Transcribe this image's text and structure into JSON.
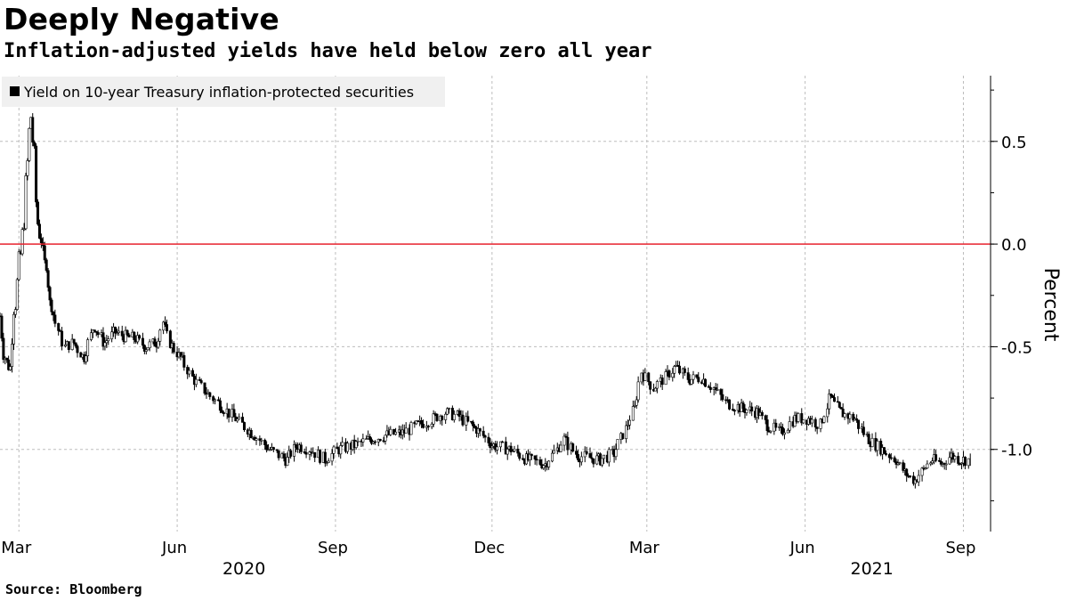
{
  "chart_data": {
    "type": "line",
    "title": "Deeply Negative",
    "subtitle": "Inflation-adjusted yields have held below zero all year",
    "legend": [
      "Yield on 10-year Treasury inflation-protected securities"
    ],
    "legend_position": "top-left",
    "ylabel": "Percent",
    "xlabel": "",
    "ylim": [
      -1.4,
      0.82
    ],
    "yticks": [
      0.5,
      0.0,
      -0.5,
      -1.0
    ],
    "ytick_labels": [
      "0.5",
      "0.0",
      "-0.5",
      "-1.0"
    ],
    "reference_line": {
      "value": 0.0,
      "color": "#e8222e"
    },
    "x_domain": [
      "2020-02-19",
      "2021-09-08"
    ],
    "month_ticks": [
      {
        "label": "Mar",
        "date": "2020-03-01"
      },
      {
        "label": "Jun",
        "date": "2020-06-01"
      },
      {
        "label": "Sep",
        "date": "2020-09-01"
      },
      {
        "label": "Dec",
        "date": "2020-12-01"
      },
      {
        "label": "Mar",
        "date": "2021-03-01"
      },
      {
        "label": "Jun",
        "date": "2021-06-01"
      },
      {
        "label": "Sep",
        "date": "2021-09-01"
      }
    ],
    "year_labels": [
      {
        "label": "2020",
        "date": "2020-07-15"
      },
      {
        "label": "2021",
        "date": "2021-07-15"
      }
    ],
    "grid": true,
    "series": [
      {
        "name": "Yield on 10-year Treasury inflation-protected securities",
        "style": "candlestick",
        "points": [
          [
            "2020-02-19",
            -0.35
          ],
          [
            "2020-02-22",
            -0.55
          ],
          [
            "2020-02-25",
            -0.6
          ],
          [
            "2020-02-28",
            -0.3
          ],
          [
            "2020-03-02",
            -0.05
          ],
          [
            "2020-03-04",
            0.1
          ],
          [
            "2020-03-06",
            0.4
          ],
          [
            "2020-03-08",
            0.62
          ],
          [
            "2020-03-10",
            0.45
          ],
          [
            "2020-03-12",
            0.1
          ],
          [
            "2020-03-14",
            0.02
          ],
          [
            "2020-03-17",
            -0.1
          ],
          [
            "2020-03-20",
            -0.3
          ],
          [
            "2020-03-24",
            -0.42
          ],
          [
            "2020-03-28",
            -0.5
          ],
          [
            "2020-04-02",
            -0.48
          ],
          [
            "2020-04-08",
            -0.55
          ],
          [
            "2020-04-14",
            -0.4
          ],
          [
            "2020-04-20",
            -0.48
          ],
          [
            "2020-04-26",
            -0.43
          ],
          [
            "2020-05-02",
            -0.45
          ],
          [
            "2020-05-08",
            -0.46
          ],
          [
            "2020-05-14",
            -0.5
          ],
          [
            "2020-05-20",
            -0.48
          ],
          [
            "2020-05-24",
            -0.38
          ],
          [
            "2020-05-28",
            -0.48
          ],
          [
            "2020-06-03",
            -0.55
          ],
          [
            "2020-06-10",
            -0.65
          ],
          [
            "2020-06-18",
            -0.72
          ],
          [
            "2020-06-26",
            -0.78
          ],
          [
            "2020-07-05",
            -0.85
          ],
          [
            "2020-07-15",
            -0.92
          ],
          [
            "2020-07-25",
            -1.0
          ],
          [
            "2020-08-04",
            -1.05
          ],
          [
            "2020-08-10",
            -0.98
          ],
          [
            "2020-08-18",
            -1.0
          ],
          [
            "2020-08-26",
            -1.05
          ],
          [
            "2020-09-03",
            -1.0
          ],
          [
            "2020-09-12",
            -0.98
          ],
          [
            "2020-09-22",
            -0.95
          ],
          [
            "2020-10-01",
            -0.93
          ],
          [
            "2020-10-10",
            -0.92
          ],
          [
            "2020-10-20",
            -0.88
          ],
          [
            "2020-10-28",
            -0.85
          ],
          [
            "2020-11-04",
            -0.82
          ],
          [
            "2020-11-12",
            -0.84
          ],
          [
            "2020-11-22",
            -0.9
          ],
          [
            "2020-12-02",
            -0.98
          ],
          [
            "2020-12-12",
            -1.0
          ],
          [
            "2020-12-22",
            -1.05
          ],
          [
            "2021-01-01",
            -1.07
          ],
          [
            "2021-01-08",
            -1.0
          ],
          [
            "2021-01-12",
            -0.95
          ],
          [
            "2021-01-20",
            -1.03
          ],
          [
            "2021-02-02",
            -1.05
          ],
          [
            "2021-02-10",
            -1.02
          ],
          [
            "2021-02-17",
            -0.9
          ],
          [
            "2021-02-22",
            -0.8
          ],
          [
            "2021-02-26",
            -0.62
          ],
          [
            "2021-03-05",
            -0.7
          ],
          [
            "2021-03-12",
            -0.65
          ],
          [
            "2021-03-18",
            -0.6
          ],
          [
            "2021-03-26",
            -0.66
          ],
          [
            "2021-04-02",
            -0.65
          ],
          [
            "2021-04-09",
            -0.7
          ],
          [
            "2021-04-16",
            -0.77
          ],
          [
            "2021-04-26",
            -0.8
          ],
          [
            "2021-05-05",
            -0.82
          ],
          [
            "2021-05-10",
            -0.88
          ],
          [
            "2021-05-18",
            -0.92
          ],
          [
            "2021-05-26",
            -0.85
          ],
          [
            "2021-06-03",
            -0.85
          ],
          [
            "2021-06-10",
            -0.88
          ],
          [
            "2021-06-16",
            -0.75
          ],
          [
            "2021-06-22",
            -0.82
          ],
          [
            "2021-06-30",
            -0.85
          ],
          [
            "2021-07-08",
            -0.95
          ],
          [
            "2021-07-16",
            -1.0
          ],
          [
            "2021-07-24",
            -1.05
          ],
          [
            "2021-07-30",
            -1.12
          ],
          [
            "2021-08-04",
            -1.15
          ],
          [
            "2021-08-09",
            -1.1
          ],
          [
            "2021-08-14",
            -1.05
          ],
          [
            "2021-08-20",
            -1.07
          ],
          [
            "2021-08-25",
            -1.03
          ],
          [
            "2021-08-31",
            -1.05
          ],
          [
            "2021-09-05",
            -1.05
          ]
        ]
      }
    ]
  },
  "footer": {
    "source": "Source: Bloomberg"
  }
}
